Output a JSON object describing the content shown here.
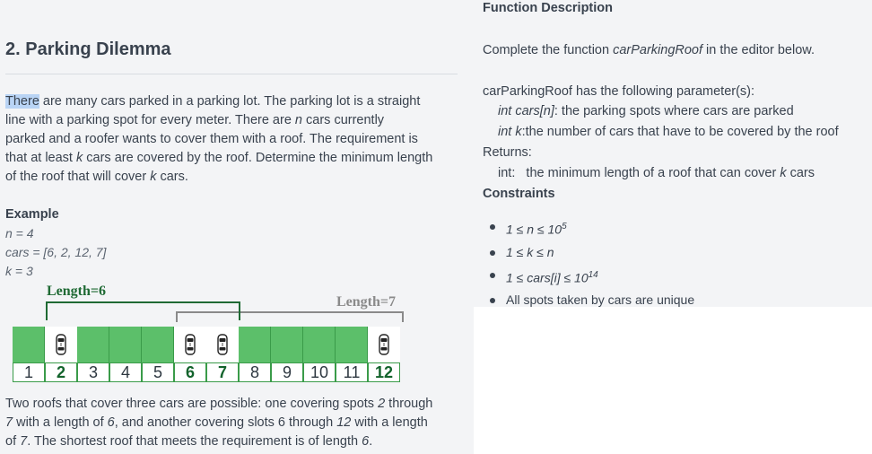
{
  "left": {
    "title": "2. Parking Dilemma",
    "intro": {
      "highlighted": "There",
      "l1": " are many cars parked in a parking lot. The parking lot is a straight",
      "l2": "line with a parking spot for every meter. There are ",
      "l2_n": "n",
      "l2_b": " cars currently",
      "l3": "parked and a roofer wants to cover them with a roof. The requirement is",
      "l4": "that at least ",
      "l4_k": "k",
      "l4_b": " cars are covered by the roof. Determine the minimum length",
      "l5": "of the roof that will cover ",
      "l5_k": "k",
      "l5_b": " cars."
    },
    "example": {
      "heading": "Example",
      "n_line": "n = 4",
      "cars_line": "cars = [6, 2, 12, 7]",
      "k_line": "k = 3"
    },
    "diagram": {
      "roof1_label": "Length=6",
      "roof2_label": "Length=7",
      "roof1_color": "#1f6a34",
      "roof2_color": "#8a8a8a",
      "spots": [
        {
          "num": "1",
          "occupied": false
        },
        {
          "num": "2",
          "occupied": true
        },
        {
          "num": "3",
          "occupied": false
        },
        {
          "num": "4",
          "occupied": false
        },
        {
          "num": "5",
          "occupied": false
        },
        {
          "num": "6",
          "occupied": true
        },
        {
          "num": "7",
          "occupied": true
        },
        {
          "num": "8",
          "occupied": false
        },
        {
          "num": "9",
          "occupied": false
        },
        {
          "num": "10",
          "occupied": false
        },
        {
          "num": "11",
          "occupied": false
        },
        {
          "num": "12",
          "occupied": true
        }
      ]
    },
    "explanation": {
      "a1": "Two roofs that cover three cars are possible: one covering spots ",
      "a1_i": "2",
      "a1_b": " through",
      "a2_i": "7",
      "a2": " with a length of ",
      "a2_i2": "6",
      "a2_b": ", and another covering slots 6 through ",
      "a2_i3": "12",
      "a2_c": " with a length",
      "a3": "of ",
      "a3_i": "7",
      "a3_b": ".  The shortest roof that meets the requirement is of length ",
      "a3_i2": "6",
      "a3_c": "."
    }
  },
  "right": {
    "function_heading": "Function Description",
    "complete_a": "Complete the function ",
    "complete_fn": "carParkingRoof",
    "complete_b": " in the editor below.",
    "params_line": "carParkingRoof has the following parameter(s):",
    "param1_i": "int cars[n]",
    "param1": ": the parking spots where cars are parked",
    "param2_i": "int k",
    "param2": ":the number of cars that have to be covered by the roof",
    "returns_label": "Returns:",
    "returns_text": "int:   the minimum length of a roof that can cover ",
    "returns_k": "k",
    "returns_b": " cars",
    "constraints_heading": "Constraints",
    "constraints": {
      "c1_a": "1 ≤ n ≤ 10",
      "c1_sup": "5",
      "c2": "1 ≤ k ≤ n",
      "c3_a": "1 ≤ cars[i] ≤ 10",
      "c3_sup": "14",
      "c4": "All spots taken by cars are unique"
    }
  }
}
